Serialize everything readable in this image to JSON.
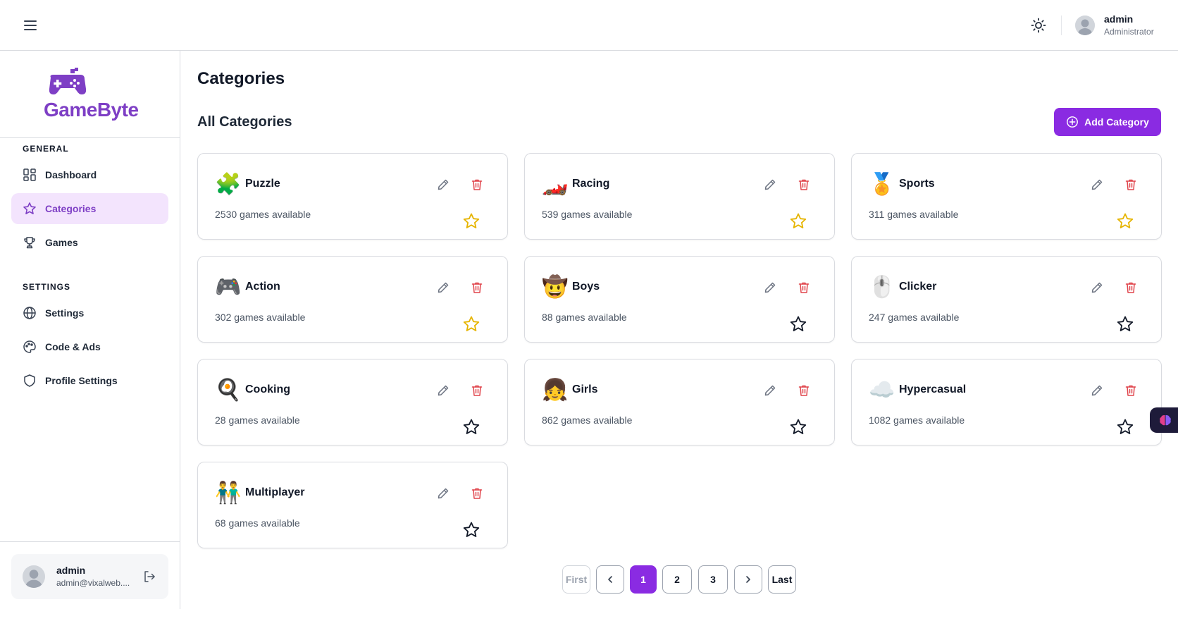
{
  "header": {
    "user_name": "admin",
    "user_role": "Administrator",
    "icons": {
      "menu": "hamburger-icon",
      "theme": "sun-icon",
      "avatar": "user-avatar"
    }
  },
  "sidebar": {
    "brand": "GameByte",
    "sections": [
      {
        "label": "GENERAL"
      },
      {
        "label": "SETTINGS"
      }
    ],
    "items": [
      {
        "label": "Dashboard",
        "icon": "dashboard-icon",
        "active": false
      },
      {
        "label": "Categories",
        "icon": "star-icon",
        "active": true
      },
      {
        "label": "Games",
        "icon": "trophy-icon",
        "active": false
      },
      {
        "label": "Settings",
        "icon": "globe-icon",
        "active": false
      },
      {
        "label": "Code & Ads",
        "icon": "palette-icon",
        "active": false
      },
      {
        "label": "Profile Settings",
        "icon": "shield-icon",
        "active": false
      }
    ],
    "profile": {
      "name": "admin",
      "email": "admin@vixalweb...."
    }
  },
  "main": {
    "title": "Categories",
    "section_title": "All Categories",
    "add_button_label": "Add Category",
    "categories": [
      {
        "name": "Puzzle",
        "count": "2530 games available",
        "emoji": "🧩",
        "featured": true
      },
      {
        "name": "Racing",
        "count": "539 games available",
        "emoji": "🏎️",
        "featured": true
      },
      {
        "name": "Sports",
        "count": "311 games available",
        "emoji": "🏅",
        "featured": true
      },
      {
        "name": "Action",
        "count": "302 games available",
        "emoji": "🎮",
        "featured": true
      },
      {
        "name": "Boys",
        "count": "88 games available",
        "emoji": "🤠",
        "featured": false
      },
      {
        "name": "Clicker",
        "count": "247 games available",
        "emoji": "🖱️",
        "featured": false
      },
      {
        "name": "Cooking",
        "count": "28 games available",
        "emoji": "🍳",
        "featured": false
      },
      {
        "name": "Girls",
        "count": "862 games available",
        "emoji": "👧",
        "featured": false
      },
      {
        "name": "Hypercasual",
        "count": "1082 games available",
        "emoji": "☁️",
        "featured": false
      },
      {
        "name": "Multiplayer",
        "count": "68 games available",
        "emoji": "👬",
        "featured": false
      }
    ]
  },
  "pagination": {
    "first": "First",
    "last": "Last",
    "pages": [
      "1",
      "2",
      "3"
    ],
    "current": "1"
  },
  "colors": {
    "accent": "#8a2be2",
    "brand": "#7e3fc5",
    "active_bg": "#f3e4fd",
    "delete": "#e0444b",
    "star_featured": "#e6b400"
  }
}
